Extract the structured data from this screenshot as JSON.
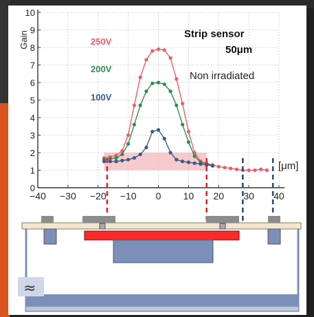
{
  "chart_data": {
    "type": "line",
    "ylabel": "Gain",
    "xlabel": "[μm]",
    "xlim": [
      -40,
      40
    ],
    "ylim": [
      0,
      10
    ],
    "xticks": [
      -40,
      -30,
      -20,
      -10,
      0,
      10,
      20,
      30,
      40
    ],
    "yticks": [
      0,
      1,
      2,
      3,
      4,
      5,
      6,
      7,
      8,
      9,
      10
    ],
    "grid": true,
    "title_lines": [
      "Strip sensor",
      "50μm"
    ],
    "subtitle": "Non irradiated",
    "series": [
      {
        "name": "250V",
        "color": "#ef5b66",
        "points": [
          [
            -18,
            1.7
          ],
          [
            -16,
            1.75
          ],
          [
            -14,
            1.85
          ],
          [
            -12,
            2.1
          ],
          [
            -10,
            3.0
          ],
          [
            -8,
            4.7
          ],
          [
            -6,
            6.3
          ],
          [
            -4,
            7.3
          ],
          [
            -2,
            7.8
          ],
          [
            0,
            7.9
          ],
          [
            2,
            7.85
          ],
          [
            4,
            7.4
          ],
          [
            6,
            6.2
          ],
          [
            8,
            4.8
          ],
          [
            10,
            3.2
          ],
          [
            12,
            2.0
          ],
          [
            14,
            1.5
          ],
          [
            16,
            1.4
          ],
          [
            18,
            1.3
          ],
          [
            20,
            1.2
          ],
          [
            22,
            1.15
          ],
          [
            24,
            1.1
          ],
          [
            26,
            1.05
          ],
          [
            28,
            1.0
          ],
          [
            30,
            1.0
          ],
          [
            32,
            1.0
          ],
          [
            34,
            1.05
          ],
          [
            36,
            1.0
          ]
        ]
      },
      {
        "name": "200V",
        "color": "#2f8c55",
        "points": [
          [
            -18,
            1.6
          ],
          [
            -16,
            1.65
          ],
          [
            -14,
            1.7
          ],
          [
            -12,
            1.9
          ],
          [
            -10,
            2.5
          ],
          [
            -8,
            3.6
          ],
          [
            -6,
            4.7
          ],
          [
            -4,
            5.5
          ],
          [
            -2,
            5.95
          ],
          [
            0,
            6.0
          ],
          [
            2,
            5.9
          ],
          [
            4,
            5.5
          ],
          [
            6,
            4.7
          ],
          [
            8,
            3.6
          ],
          [
            10,
            2.6
          ],
          [
            12,
            1.8
          ],
          [
            14,
            1.45
          ],
          [
            16,
            1.35
          ],
          [
            18,
            1.25
          ]
        ]
      },
      {
        "name": "100V",
        "color": "#3a5a8c",
        "points": [
          [
            -18,
            1.5
          ],
          [
            -16,
            1.5
          ],
          [
            -14,
            1.5
          ],
          [
            -12,
            1.55
          ],
          [
            -10,
            1.6
          ],
          [
            -8,
            1.7
          ],
          [
            -6,
            1.9
          ],
          [
            -4,
            2.3
          ],
          [
            -2,
            3.2
          ],
          [
            0,
            3.3
          ],
          [
            2,
            2.8
          ],
          [
            4,
            2.0
          ],
          [
            6,
            1.6
          ],
          [
            8,
            1.5
          ],
          [
            10,
            1.45
          ],
          [
            12,
            1.4
          ],
          [
            14,
            1.35
          ],
          [
            16,
            1.3
          ],
          [
            18,
            1.25
          ]
        ]
      }
    ],
    "band": {
      "x_from": -18,
      "x_to": 16,
      "y_from": 1,
      "y_to": 2,
      "color": "#f4b8bc"
    },
    "marker_lines": [
      {
        "x": -17,
        "color": "#e0242a"
      },
      {
        "x": 16,
        "color": "#e0242a"
      },
      {
        "x": 28,
        "color": "#2f4a72"
      },
      {
        "x": 38,
        "color": "#2f4a72"
      }
    ]
  },
  "colors": {
    "accent_red": "#ff2a2a",
    "sensor_blue": "#7b8fb8",
    "bar_beige": "#f2e6d0",
    "pad_gray": "#8c8c8c"
  },
  "break_symbol": "≈"
}
